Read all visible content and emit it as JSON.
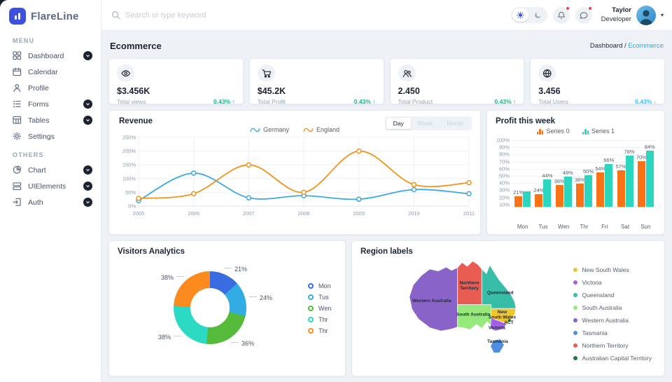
{
  "app": {
    "name": "FlareLine"
  },
  "sidebar": {
    "menu_label": "MENU",
    "others_label": "OTHERS",
    "menu_items": [
      {
        "label": "Dashboard",
        "icon": "dashboard-grid-icon",
        "expandable": true
      },
      {
        "label": "Calendar",
        "icon": "calendar-icon",
        "expandable": false
      },
      {
        "label": "Profile",
        "icon": "profile-icon",
        "expandable": false
      },
      {
        "label": "Forms",
        "icon": "forms-icon",
        "expandable": true
      },
      {
        "label": "Tables",
        "icon": "tables-icon",
        "expandable": true
      },
      {
        "label": "Settings",
        "icon": "settings-gear-icon",
        "expandable": false
      }
    ],
    "others_items": [
      {
        "label": "Chart",
        "icon": "chart-pie-icon",
        "expandable": true
      },
      {
        "label": "UIElements",
        "icon": "ui-elements-icon",
        "expandable": true
      },
      {
        "label": "Auth",
        "icon": "auth-signin-icon",
        "expandable": true
      }
    ]
  },
  "header": {
    "search_placeholder": "Search or type keyword",
    "user": {
      "line1": "Taylor",
      "line2": "Developer"
    }
  },
  "page": {
    "title": "Ecommerce",
    "breadcrumb": {
      "root": "Dashboard",
      "separator": " / ",
      "current": "Ecommerce"
    }
  },
  "stats": [
    {
      "icon": "eye-icon",
      "value": "$3.456K",
      "label": "Total views",
      "change": "0.43%",
      "arrow": "↑",
      "change_color": "#10b981"
    },
    {
      "icon": "cart-icon",
      "value": "$45.2K",
      "label": "Total Profit",
      "change": "0.43%",
      "arrow": "↑",
      "change_color": "#10b981"
    },
    {
      "icon": "users-icon",
      "value": "2.450",
      "label": "Total Product",
      "change": "0.43%",
      "arrow": "↑",
      "change_color": "#10b981"
    },
    {
      "icon": "globe-icon",
      "value": "3.456",
      "label": "Total Users",
      "change": "0.43%",
      "arrow": "↓",
      "change_color": "#38bdf8"
    }
  ],
  "chart_data": [
    {
      "id": "revenue",
      "type": "line",
      "title": "Revenue",
      "toggle": {
        "options": [
          "Day",
          "Week",
          "Month"
        ],
        "active": "Day"
      },
      "x": [
        "2005",
        "2006",
        "2007",
        "2008",
        "2009",
        "2010",
        "2011"
      ],
      "series": [
        {
          "name": "Germany",
          "color": "#3BA9E0",
          "values": [
            20,
            120,
            30,
            38,
            25,
            60,
            45
          ]
        },
        {
          "name": "England",
          "color": "#F0941C",
          "values": [
            28,
            45,
            150,
            50,
            200,
            78,
            85
          ]
        }
      ],
      "y_ticks": [
        "0%",
        "50%",
        "100%",
        "150%",
        "200%",
        "250%"
      ],
      "ylim": [
        0,
        250
      ],
      "grid": true,
      "legend_position": "top"
    },
    {
      "id": "profit-this-week",
      "type": "bar",
      "title": "Profit this week",
      "categories": [
        "Mon",
        "Tus",
        "Wen",
        "Thr",
        "Fri",
        "Sat",
        "Sun"
      ],
      "series": [
        {
          "name": "Series 0",
          "color": "#F97316",
          "values": [
            21,
            24,
            36,
            38,
            54,
            57,
            70
          ],
          "value_labels": [
            "21%",
            "24%",
            "36%",
            "38%",
            "54%",
            "57%",
            "70%"
          ]
        },
        {
          "name": "Series 1",
          "color": "#2BD5BE",
          "values": [
            28,
            44,
            48,
            50,
            66,
            78,
            84
          ],
          "value_labels": [
            "",
            "44%",
            "48%",
            "50%",
            "66%",
            "78%",
            "84%"
          ]
        }
      ],
      "y_ticks": [
        "100%",
        "90%",
        "80%",
        "70%",
        "60%",
        "50%",
        "40%",
        "30%",
        "20%",
        "10%"
      ],
      "ylim": [
        10,
        100
      ],
      "grid": true,
      "legend_position": "top"
    },
    {
      "id": "visitors-analytics",
      "type": "donut",
      "title": "Visitors Analytics",
      "slices": [
        {
          "name": "Mon",
          "value": 21,
          "label": "21%",
          "color": "#3B6BE0"
        },
        {
          "name": "Tus",
          "value": 24,
          "label": "24%",
          "color": "#33ACE3"
        },
        {
          "name": "Wen",
          "value": 36,
          "label": "36%",
          "color": "#56BB3B"
        },
        {
          "name": "Thr",
          "value": 38,
          "label": "38%",
          "color": "#2CD9C2"
        },
        {
          "name": "Thr",
          "value": 38,
          "label": "38%",
          "color": "#FB8B1F"
        }
      ],
      "legend_position": "right"
    },
    {
      "id": "region-labels",
      "type": "map",
      "title": "Region labels",
      "fills": {
        "western_australia": "#8A63C9",
        "northern_territory": "#E85C51",
        "queensland": "#38BDA8",
        "south_australia": "#97E87D",
        "new_south_wales": "#EEC62E",
        "victoria": "#A35FE8",
        "tasmania": "#4E8FE0",
        "act": "#1E7A3C"
      },
      "labels": {
        "western_australia": "Western Australia",
        "northern_territory_line1": "Northern",
        "northern_territory_line2": "Territory",
        "queensland": "Queensland",
        "south_australia": "South Australia",
        "new_south_wales_line1": "New",
        "new_south_wales_line2": "South Wales",
        "act": "ACT",
        "victoria": "Victoria",
        "tasmania": "Tasmania"
      },
      "legend": [
        {
          "name": "New South Wales",
          "color": "#E8C438"
        },
        {
          "name": "Victoria",
          "color": "#A35FD8"
        },
        {
          "name": "Queensland",
          "color": "#38BDA8"
        },
        {
          "name": "South Australia",
          "color": "#97E87D"
        },
        {
          "name": "Western Australia",
          "color": "#8A63C9"
        },
        {
          "name": "Tasmania",
          "color": "#4E8FE0"
        },
        {
          "name": "Northern Territory",
          "color": "#E85C51"
        },
        {
          "name": "Australian Capital Territory",
          "color": "#1E7A3C"
        }
      ]
    }
  ]
}
